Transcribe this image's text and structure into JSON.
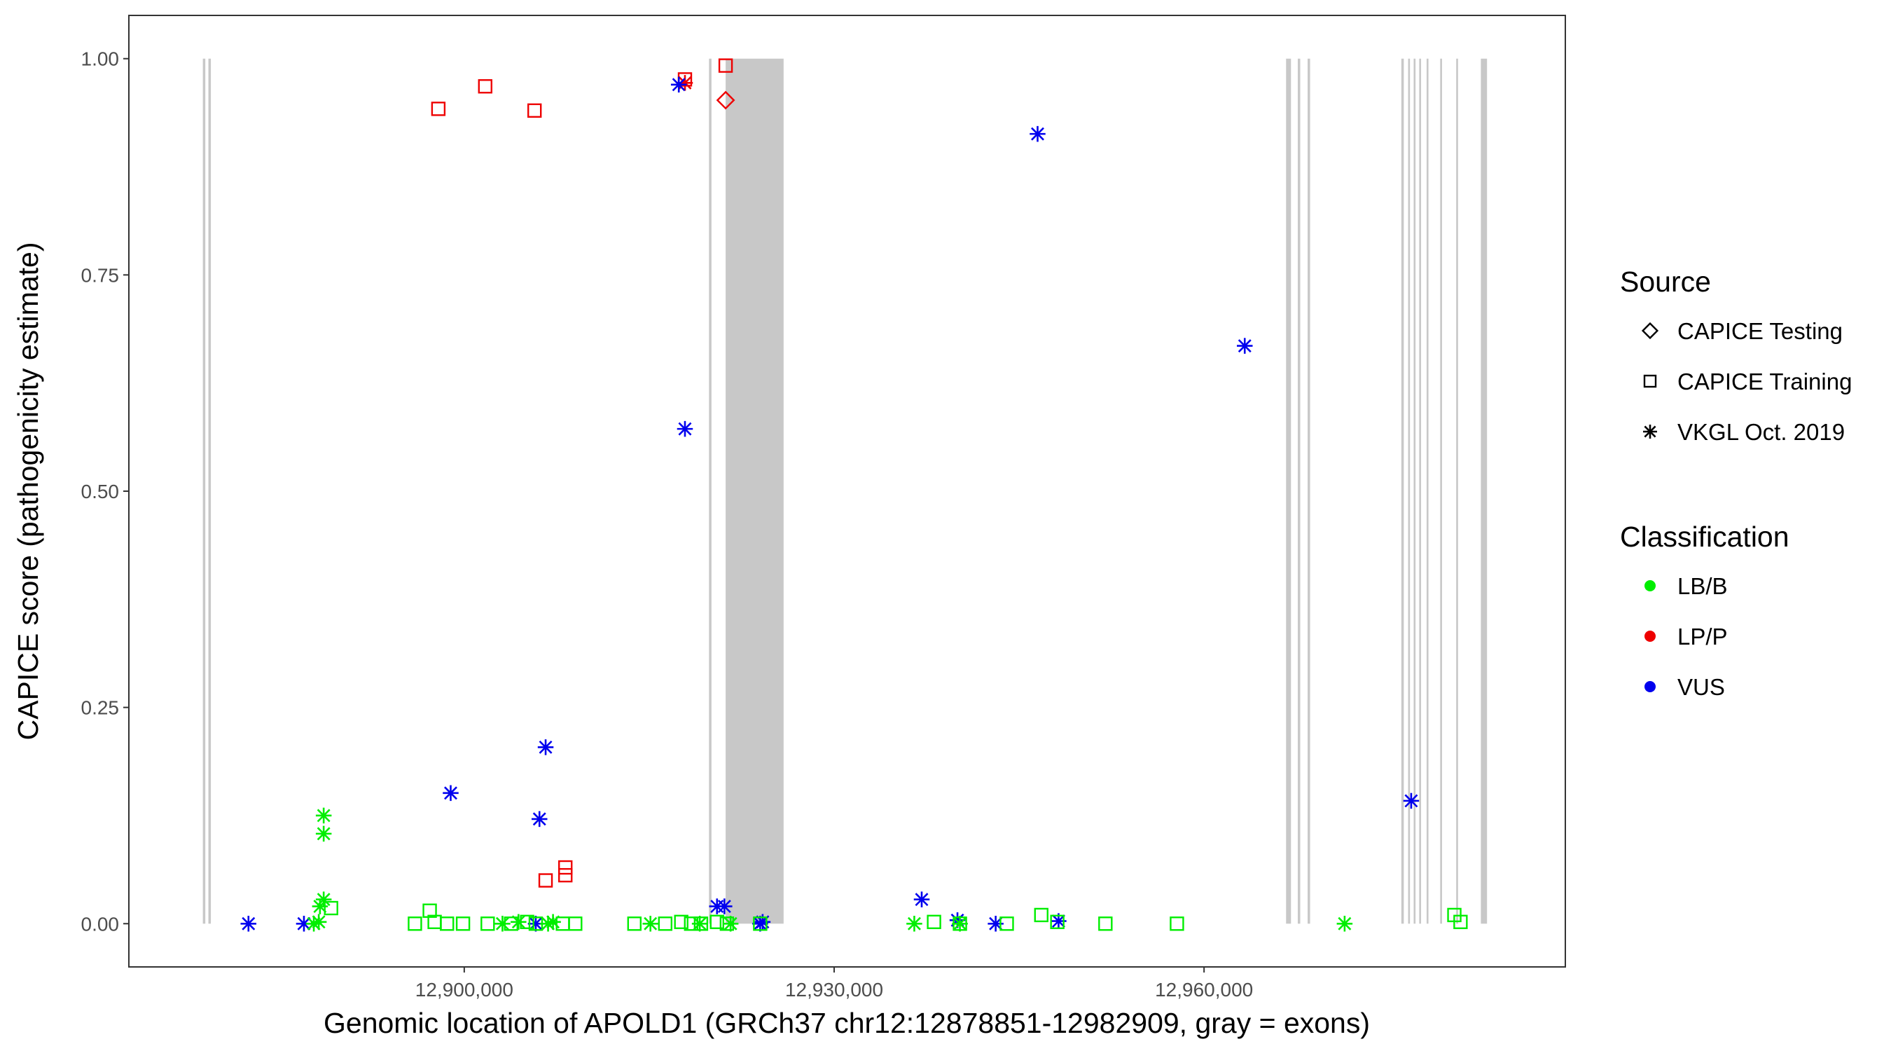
{
  "chart_data": {
    "type": "scatter",
    "xlabel": "Genomic location of APOLD1 (GRCh37 chr12:12878851-12982909, gray = exons)",
    "ylabel": "CAPICE score (pathogenicity estimate)",
    "xlim": [
      12872800,
      12989300
    ],
    "ylim": [
      -0.05,
      1.05
    ],
    "xticks": [
      12900000,
      12930000,
      12960000
    ],
    "xtick_labels": [
      "12,900,000",
      "12,930,000",
      "12,960,000"
    ],
    "yticks": [
      0,
      0.25,
      0.5,
      0.75,
      1.0
    ],
    "ytick_labels": [
      "0.00",
      "0.25",
      "0.50",
      "0.75",
      "1.00"
    ],
    "grid": false,
    "exon_color": "#c8c8c8",
    "exons": [
      [
        12878800,
        12879000
      ],
      [
        12879250,
        12879450
      ],
      [
        12919850,
        12920050
      ],
      [
        12921200,
        12925900
      ],
      [
        12966650,
        12967050
      ],
      [
        12967600,
        12967800
      ],
      [
        12968400,
        12968600
      ],
      [
        12976000,
        12976200
      ],
      [
        12976550,
        12976700
      ],
      [
        12977000,
        12977150
      ],
      [
        12977450,
        12977600
      ],
      [
        12978050,
        12978200
      ],
      [
        12979150,
        12979300
      ],
      [
        12980450,
        12980600
      ],
      [
        12982450,
        12982950
      ]
    ],
    "legend": {
      "position": "right",
      "source_title": "Source",
      "source_entries": [
        {
          "label": "CAPICE Testing",
          "shape": "diamond"
        },
        {
          "label": "CAPICE Training",
          "shape": "square"
        },
        {
          "label": "VKGL Oct. 2019",
          "shape": "asterisk"
        }
      ],
      "class_title": "Classification",
      "class_entries": [
        {
          "label": "LB/B",
          "color": "#00ee00"
        },
        {
          "label": "LP/P",
          "color": "#ee0000"
        },
        {
          "label": "VUS",
          "color": "#0000ee"
        }
      ]
    },
    "series": [
      {
        "classification": "LP/P",
        "source": "CAPICE Training",
        "shape": "square",
        "color": "#ee0000",
        "points": [
          [
            12897900,
            0.942
          ],
          [
            12901700,
            0.968
          ],
          [
            12905700,
            0.94
          ],
          [
            12917900,
            0.976
          ],
          [
            12921200,
            0.992
          ],
          [
            12906600,
            0.05
          ],
          [
            12908200,
            0.065
          ],
          [
            12908200,
            0.056
          ]
        ]
      },
      {
        "classification": "LP/P",
        "source": "CAPICE Testing",
        "shape": "diamond",
        "color": "#ee0000",
        "points": [
          [
            12921200,
            0.952
          ]
        ]
      },
      {
        "classification": "LP/P",
        "source": "VKGL Oct. 2019",
        "shape": "asterisk",
        "color": "#ee0000",
        "points": [
          [
            12917900,
            0.972
          ]
        ]
      },
      {
        "classification": "VUS",
        "source": "VKGL Oct. 2019",
        "shape": "asterisk",
        "color": "#0000ee",
        "points": [
          [
            12917400,
            0.97
          ],
          [
            12917900,
            0.572
          ],
          [
            12946500,
            0.913
          ],
          [
            12963300,
            0.668
          ],
          [
            12976800,
            0.142
          ],
          [
            12898900,
            0.151
          ],
          [
            12906600,
            0.204
          ],
          [
            12906100,
            0.121
          ],
          [
            12882500,
            0.0
          ],
          [
            12887000,
            0.0
          ],
          [
            12905800,
            0.0
          ],
          [
            12920500,
            0.02
          ],
          [
            12921100,
            0.02
          ],
          [
            12924000,
            0.0
          ],
          [
            12924200,
            0.002
          ],
          [
            12937100,
            0.028
          ],
          [
            12940000,
            0.004
          ],
          [
            12943100,
            0.0
          ],
          [
            12948200,
            0.003
          ]
        ]
      },
      {
        "classification": "LB/B",
        "source": "VKGL Oct. 2019",
        "shape": "asterisk",
        "color": "#00ee00",
        "points": [
          [
            12888600,
            0.125
          ],
          [
            12888600,
            0.104
          ],
          [
            12888600,
            0.028
          ],
          [
            12888300,
            0.02
          ],
          [
            12887800,
            0.0
          ],
          [
            12888200,
            0.002
          ],
          [
            12903100,
            0.0
          ],
          [
            12904400,
            0.002
          ],
          [
            12906800,
            0.0
          ],
          [
            12907200,
            0.002
          ],
          [
            12915100,
            0.0
          ],
          [
            12919100,
            0.0
          ],
          [
            12921600,
            0.0
          ],
          [
            12936500,
            0.0
          ],
          [
            12940200,
            0.0
          ],
          [
            12971400,
            0.0
          ]
        ]
      },
      {
        "classification": "LB/B",
        "source": "CAPICE Training",
        "shape": "square",
        "color": "#00ee00",
        "points": [
          [
            12889200,
            0.018
          ],
          [
            12897200,
            0.015
          ],
          [
            12896000,
            0.0
          ],
          [
            12897600,
            0.002
          ],
          [
            12898600,
            0.0
          ],
          [
            12899900,
            0.0
          ],
          [
            12901900,
            0.0
          ],
          [
            12903800,
            0.0
          ],
          [
            12905100,
            0.002
          ],
          [
            12905800,
            0.0
          ],
          [
            12908000,
            0.0
          ],
          [
            12909000,
            0.0
          ],
          [
            12913800,
            0.0
          ],
          [
            12916300,
            0.0
          ],
          [
            12917600,
            0.002
          ],
          [
            12918400,
            0.0
          ],
          [
            12919200,
            0.0
          ],
          [
            12920500,
            0.002
          ],
          [
            12921300,
            0.0
          ],
          [
            12924000,
            0.0
          ],
          [
            12938100,
            0.002
          ],
          [
            12940200,
            0.0
          ],
          [
            12944000,
            0.0
          ],
          [
            12946800,
            0.01
          ],
          [
            12948100,
            0.002
          ],
          [
            12952000,
            0.0
          ],
          [
            12957800,
            0.0
          ],
          [
            12980300,
            0.01
          ],
          [
            12980800,
            0.002
          ]
        ]
      }
    ]
  }
}
